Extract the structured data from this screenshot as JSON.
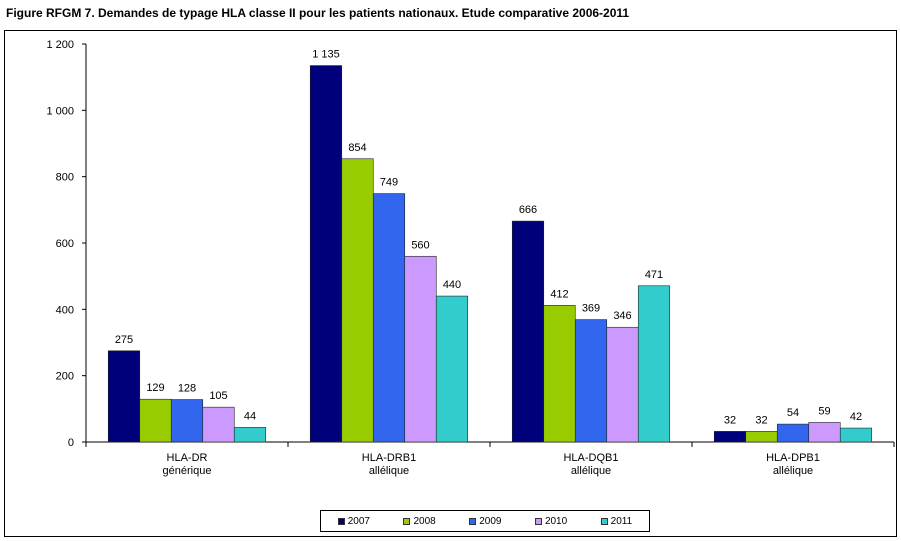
{
  "title": "Figure RFGM 7. Demandes de typage HLA classe II pour les patients nationaux. Etude comparative 2006-2011",
  "colors": {
    "2007": "#00007a",
    "2008": "#99cc00",
    "2009": "#3366ee",
    "2010": "#cc99ff",
    "2011": "#33cccc"
  },
  "chart_data": {
    "type": "bar",
    "categories": [
      [
        "HLA-DR",
        "générique"
      ],
      [
        "HLA-DRB1",
        "allélique"
      ],
      [
        "HLA-DQB1",
        "allélique"
      ],
      [
        "HLA-DPB1",
        "allélique"
      ]
    ],
    "series": [
      {
        "name": "2007",
        "values": [
          275,
          1135,
          666,
          32
        ],
        "labels": [
          "275",
          "1 135",
          "666",
          "32"
        ]
      },
      {
        "name": "2008",
        "values": [
          129,
          854,
          412,
          32
        ],
        "labels": [
          "129",
          "854",
          "412",
          "32"
        ]
      },
      {
        "name": "2009",
        "values": [
          128,
          749,
          369,
          54
        ],
        "labels": [
          "128",
          "749",
          "369",
          "54"
        ]
      },
      {
        "name": "2010",
        "values": [
          105,
          560,
          346,
          59
        ],
        "labels": [
          "105",
          "560",
          "346",
          "59"
        ]
      },
      {
        "name": "2011",
        "values": [
          44,
          440,
          471,
          42
        ],
        "labels": [
          "44",
          "440",
          "471",
          "42"
        ]
      }
    ],
    "ylim": [
      0,
      1200
    ],
    "yticks": [
      0,
      200,
      400,
      600,
      800,
      1000,
      1200
    ],
    "ytick_labels": [
      "0",
      "200",
      "400",
      "600",
      "800",
      "1 000",
      "1 200"
    ],
    "grid": false,
    "legend_position": "bottom"
  }
}
